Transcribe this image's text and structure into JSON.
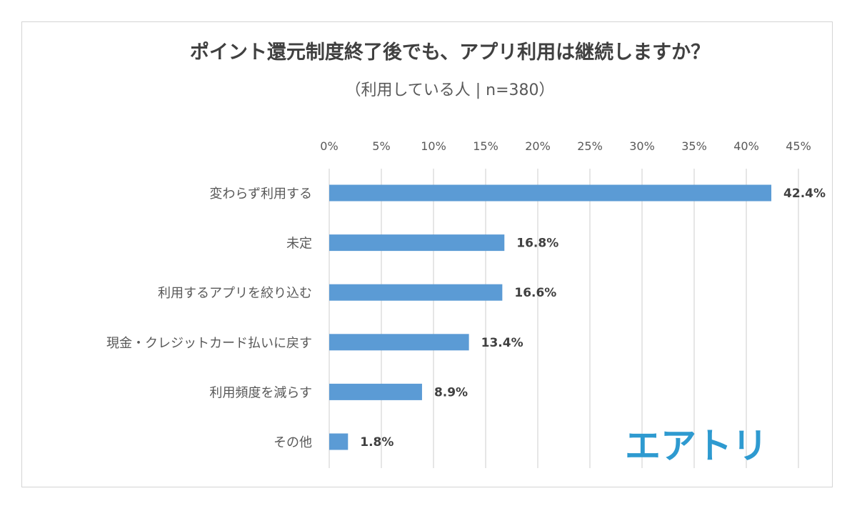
{
  "chart_data": {
    "type": "bar",
    "orientation": "horizontal",
    "title": "ポイント還元制度終了後でも、アプリ利用は継続しますか？",
    "subtitle": "（利用している人 | n=380）",
    "categories": [
      "変わらず利用する",
      "未定",
      "利用するアプリを絞り込む",
      "現金・クレジットカード払いに戻す",
      "利用頻度を減らす",
      "その他"
    ],
    "values": [
      42.4,
      16.8,
      16.6,
      13.4,
      8.9,
      1.8
    ],
    "value_labels": [
      "42.4%",
      "16.8%",
      "16.6%",
      "13.4%",
      "8.9%",
      "1.8%"
    ],
    "xlim": [
      0,
      45
    ],
    "xticks": [
      0,
      5,
      10,
      15,
      20,
      25,
      30,
      35,
      40,
      45
    ],
    "xtick_labels": [
      "0%",
      "5%",
      "10%",
      "15%",
      "20%",
      "25%",
      "30%",
      "35%",
      "40%",
      "45%"
    ],
    "x_axis_position": "top",
    "grid": true,
    "legend": "none",
    "bar_color": "#5b9bd5",
    "grid_color": "#d9d9d9"
  },
  "logo": {
    "text": "エアトリ",
    "color": "#2e9ad0"
  }
}
